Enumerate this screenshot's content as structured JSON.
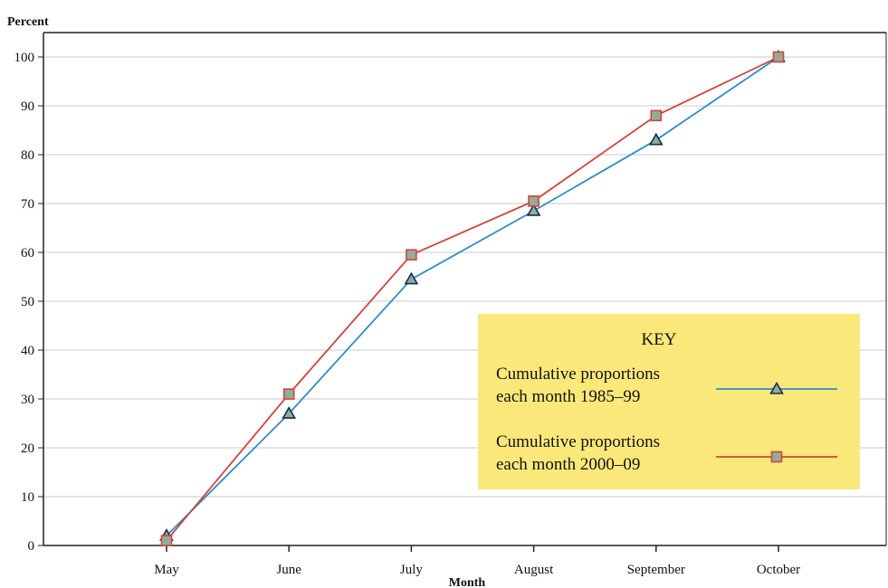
{
  "chart_data": {
    "type": "line",
    "title": "",
    "ylabel": "Percent",
    "xlabel": "Month",
    "ylim": [
      0,
      100
    ],
    "yticks": [
      0,
      10,
      20,
      30,
      40,
      50,
      60,
      70,
      80,
      90,
      100
    ],
    "grid": "horizontal",
    "categories": [
      "May",
      "June",
      "July",
      "August",
      "September",
      "October"
    ],
    "legend": {
      "title": "KEY",
      "placement": "lower-right",
      "background": "#fbe87a"
    },
    "series": [
      {
        "name": "Cumulative proportions each month 1985–99",
        "name_lines": [
          "Cumulative proportions",
          "each month 1985–99"
        ],
        "color": "#2b8fc8",
        "marker": "triangle",
        "values": [
          2,
          27,
          54.5,
          68.5,
          83,
          100
        ]
      },
      {
        "name": "Cumulative proportions each month 2000–09",
        "name_lines": [
          "Cumulative proportions",
          "each month 2000–09"
        ],
        "color": "#d9413a",
        "marker": "square",
        "values": [
          1,
          31,
          59.5,
          70.5,
          88,
          100
        ]
      }
    ],
    "marker_fill": "#8fae9a"
  }
}
